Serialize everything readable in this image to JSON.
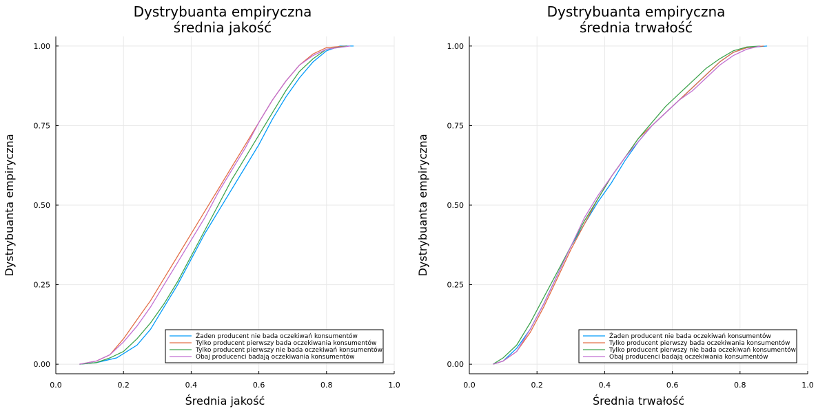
{
  "chart_data": [
    {
      "type": "line",
      "title": "Dystrybuanta empiryczna",
      "subtitle": "średnia jakość",
      "xlabel": "Średnia jakość",
      "ylabel": "Dystrybuanta empiryczna",
      "xlim": [
        0,
        1
      ],
      "ylim": [
        0,
        1
      ],
      "xticks": [
        "0.0",
        "0.2",
        "0.4",
        "0.6",
        "0.8",
        "1.0"
      ],
      "yticks": [
        "0.00",
        "0.25",
        "0.50",
        "0.75",
        "1.00"
      ],
      "grid": true,
      "legend_position": "bottom-right",
      "series": [
        {
          "name": "Żaden producent nie bada oczekiwań konsumentów",
          "color": "#009AFA",
          "points": [
            [
              0.07,
              0
            ],
            [
              0.12,
              0.005
            ],
            [
              0.18,
              0.02
            ],
            [
              0.24,
              0.06
            ],
            [
              0.28,
              0.11
            ],
            [
              0.32,
              0.18
            ],
            [
              0.36,
              0.25
            ],
            [
              0.4,
              0.33
            ],
            [
              0.44,
              0.41
            ],
            [
              0.48,
              0.48
            ],
            [
              0.52,
              0.55
            ],
            [
              0.56,
              0.62
            ],
            [
              0.6,
              0.69
            ],
            [
              0.64,
              0.77
            ],
            [
              0.68,
              0.84
            ],
            [
              0.72,
              0.9
            ],
            [
              0.76,
              0.95
            ],
            [
              0.8,
              0.985
            ],
            [
              0.84,
              1.0
            ],
            [
              0.88,
              1.0
            ]
          ]
        },
        {
          "name": "Tylko producent pierwszy bada oczekiwania konsumentów",
          "color": "#E36F47",
          "points": [
            [
              0.07,
              0
            ],
            [
              0.12,
              0.01
            ],
            [
              0.16,
              0.03
            ],
            [
              0.2,
              0.08
            ],
            [
              0.24,
              0.14
            ],
            [
              0.28,
              0.2
            ],
            [
              0.32,
              0.27
            ],
            [
              0.36,
              0.34
            ],
            [
              0.4,
              0.41
            ],
            [
              0.44,
              0.48
            ],
            [
              0.48,
              0.55
            ],
            [
              0.52,
              0.62
            ],
            [
              0.56,
              0.69
            ],
            [
              0.6,
              0.76
            ],
            [
              0.64,
              0.83
            ],
            [
              0.68,
              0.89
            ],
            [
              0.72,
              0.94
            ],
            [
              0.76,
              0.975
            ],
            [
              0.8,
              0.995
            ],
            [
              0.86,
              1.0
            ]
          ]
        },
        {
          "name": "Tylko producent pierwszy nie bada oczekiwań konsumentów",
          "color": "#3EA44E",
          "points": [
            [
              0.07,
              0
            ],
            [
              0.12,
              0.005
            ],
            [
              0.16,
              0.02
            ],
            [
              0.2,
              0.04
            ],
            [
              0.24,
              0.08
            ],
            [
              0.28,
              0.13
            ],
            [
              0.32,
              0.19
            ],
            [
              0.36,
              0.26
            ],
            [
              0.4,
              0.34
            ],
            [
              0.44,
              0.42
            ],
            [
              0.48,
              0.5
            ],
            [
              0.52,
              0.58
            ],
            [
              0.56,
              0.65
            ],
            [
              0.6,
              0.72
            ],
            [
              0.64,
              0.79
            ],
            [
              0.68,
              0.86
            ],
            [
              0.72,
              0.92
            ],
            [
              0.76,
              0.96
            ],
            [
              0.8,
              0.99
            ],
            [
              0.86,
              1.0
            ]
          ]
        },
        {
          "name": "Obaj producenci badają oczekiwania konsumentów",
          "color": "#C271D2",
          "points": [
            [
              0.07,
              0
            ],
            [
              0.12,
              0.01
            ],
            [
              0.16,
              0.03
            ],
            [
              0.2,
              0.07
            ],
            [
              0.24,
              0.12
            ],
            [
              0.28,
              0.18
            ],
            [
              0.32,
              0.25
            ],
            [
              0.36,
              0.32
            ],
            [
              0.4,
              0.39
            ],
            [
              0.44,
              0.46
            ],
            [
              0.48,
              0.54
            ],
            [
              0.52,
              0.61
            ],
            [
              0.56,
              0.68
            ],
            [
              0.6,
              0.76
            ],
            [
              0.64,
              0.83
            ],
            [
              0.68,
              0.89
            ],
            [
              0.72,
              0.94
            ],
            [
              0.76,
              0.97
            ],
            [
              0.8,
              0.99
            ],
            [
              0.87,
              1.0
            ]
          ]
        }
      ]
    },
    {
      "type": "line",
      "title": "Dystrybuanta empiryczna",
      "subtitle": "średnia trwałość",
      "xlabel": "Średnia trwałość",
      "ylabel": "Dystrybuanta empiryczna",
      "xlim": [
        0,
        1
      ],
      "ylim": [
        0,
        1
      ],
      "xticks": [
        "0.0",
        "0.2",
        "0.4",
        "0.6",
        "0.8",
        "1.0"
      ],
      "yticks": [
        "0.00",
        "0.25",
        "0.50",
        "0.75",
        "1.00"
      ],
      "grid": true,
      "legend_position": "bottom-right",
      "series": [
        {
          "name": "Żaden producent nie bada oczekiwań konsumentów",
          "color": "#009AFA",
          "points": [
            [
              0.07,
              0
            ],
            [
              0.1,
              0.01
            ],
            [
              0.14,
              0.05
            ],
            [
              0.18,
              0.11
            ],
            [
              0.22,
              0.19
            ],
            [
              0.26,
              0.28
            ],
            [
              0.3,
              0.37
            ],
            [
              0.34,
              0.44
            ],
            [
              0.38,
              0.51
            ],
            [
              0.42,
              0.57
            ],
            [
              0.46,
              0.64
            ],
            [
              0.5,
              0.7
            ],
            [
              0.54,
              0.75
            ],
            [
              0.58,
              0.79
            ],
            [
              0.62,
              0.83
            ],
            [
              0.66,
              0.87
            ],
            [
              0.7,
              0.91
            ],
            [
              0.74,
              0.95
            ],
            [
              0.78,
              0.98
            ],
            [
              0.82,
              0.995
            ],
            [
              0.88,
              1.0
            ]
          ]
        },
        {
          "name": "Tylko producent pierwszy bada oczekiwania konsumentów",
          "color": "#E36F47",
          "points": [
            [
              0.07,
              0
            ],
            [
              0.1,
              0.01
            ],
            [
              0.14,
              0.04
            ],
            [
              0.18,
              0.1
            ],
            [
              0.22,
              0.18
            ],
            [
              0.26,
              0.27
            ],
            [
              0.3,
              0.36
            ],
            [
              0.34,
              0.44
            ],
            [
              0.38,
              0.52
            ],
            [
              0.42,
              0.59
            ],
            [
              0.46,
              0.65
            ],
            [
              0.5,
              0.71
            ],
            [
              0.54,
              0.75
            ],
            [
              0.58,
              0.79
            ],
            [
              0.62,
              0.83
            ],
            [
              0.66,
              0.87
            ],
            [
              0.7,
              0.91
            ],
            [
              0.74,
              0.95
            ],
            [
              0.78,
              0.98
            ],
            [
              0.82,
              0.995
            ],
            [
              0.87,
              1.0
            ]
          ]
        },
        {
          "name": "Tylko producent pierwszy nie bada oczekiwań konsumentów",
          "color": "#3EA44E",
          "points": [
            [
              0.07,
              0
            ],
            [
              0.1,
              0.02
            ],
            [
              0.14,
              0.06
            ],
            [
              0.18,
              0.13
            ],
            [
              0.22,
              0.21
            ],
            [
              0.26,
              0.29
            ],
            [
              0.3,
              0.37
            ],
            [
              0.34,
              0.45
            ],
            [
              0.38,
              0.52
            ],
            [
              0.42,
              0.59
            ],
            [
              0.46,
              0.65
            ],
            [
              0.5,
              0.71
            ],
            [
              0.54,
              0.76
            ],
            [
              0.58,
              0.81
            ],
            [
              0.62,
              0.85
            ],
            [
              0.66,
              0.89
            ],
            [
              0.7,
              0.93
            ],
            [
              0.74,
              0.96
            ],
            [
              0.78,
              0.985
            ],
            [
              0.82,
              0.997
            ],
            [
              0.86,
              1.0
            ]
          ]
        },
        {
          "name": "Obaj producenci badają oczekiwania konsumentów",
          "color": "#C271D2",
          "points": [
            [
              0.07,
              0
            ],
            [
              0.1,
              0.01
            ],
            [
              0.14,
              0.04
            ],
            [
              0.18,
              0.11
            ],
            [
              0.22,
              0.19
            ],
            [
              0.26,
              0.28
            ],
            [
              0.3,
              0.37
            ],
            [
              0.34,
              0.46
            ],
            [
              0.38,
              0.53
            ],
            [
              0.42,
              0.59
            ],
            [
              0.46,
              0.65
            ],
            [
              0.5,
              0.7
            ],
            [
              0.54,
              0.75
            ],
            [
              0.58,
              0.79
            ],
            [
              0.62,
              0.83
            ],
            [
              0.66,
              0.86
            ],
            [
              0.7,
              0.9
            ],
            [
              0.74,
              0.94
            ],
            [
              0.78,
              0.97
            ],
            [
              0.82,
              0.99
            ],
            [
              0.86,
              1.0
            ]
          ]
        }
      ]
    }
  ]
}
